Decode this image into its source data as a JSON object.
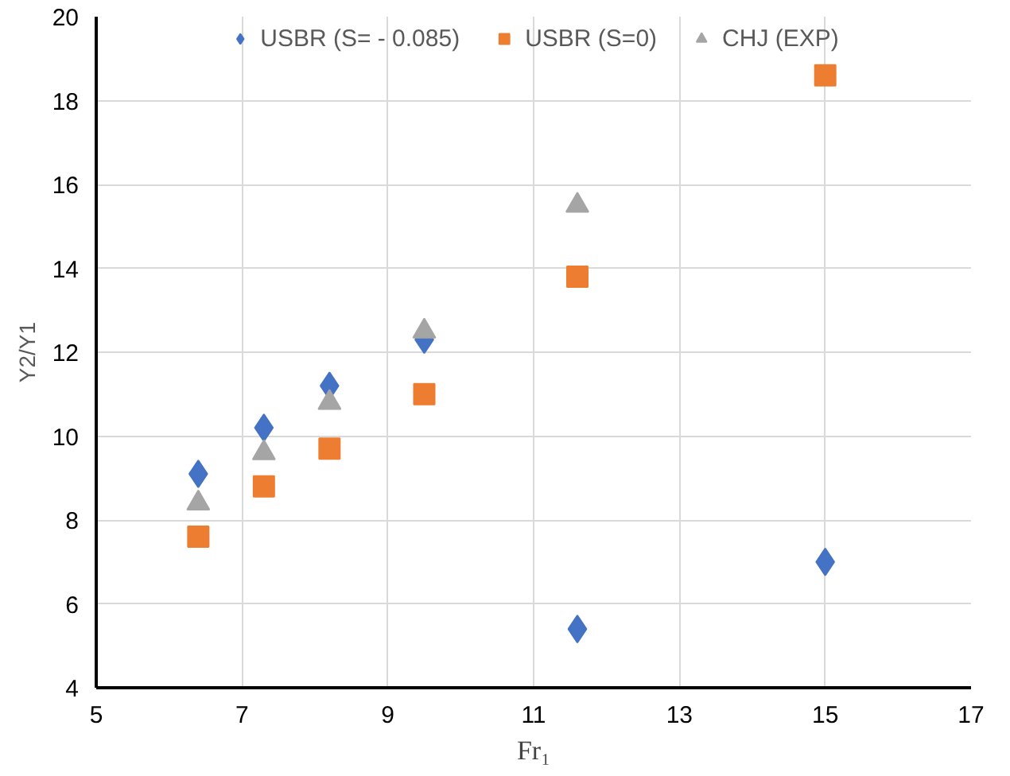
{
  "chart_data": {
    "type": "scatter",
    "xlabel": "Fr₁",
    "ylabel": "Y2/Y1",
    "x": [
      6.4,
      7.3,
      8.2,
      9.5,
      11.6,
      15
    ],
    "series": [
      {
        "name": "USBR (S= - 0.085)",
        "color": "#4472c4",
        "marker": "diamond",
        "values": [
          9.1,
          10.2,
          11.2,
          12.3,
          5.4,
          7.0
        ]
      },
      {
        "name": "USBR (S=0)",
        "color": "#ed7d31",
        "marker": "square",
        "values": [
          7.6,
          8.8,
          9.7,
          11.0,
          13.8,
          18.6
        ]
      },
      {
        "name": "CHJ (EXP)",
        "color": "#a5a5a5",
        "marker": "triangle",
        "values": [
          8.4,
          9.6,
          10.8,
          12.5,
          15.5,
          null
        ]
      }
    ],
    "xlim": [
      5,
      17
    ],
    "xticks": [
      5,
      7,
      9,
      11,
      13,
      15,
      17
    ],
    "ylim": [
      4,
      20
    ],
    "yticks": [
      4,
      6,
      8,
      10,
      12,
      14,
      16,
      18,
      20
    ],
    "grid": true,
    "legend": "top"
  }
}
